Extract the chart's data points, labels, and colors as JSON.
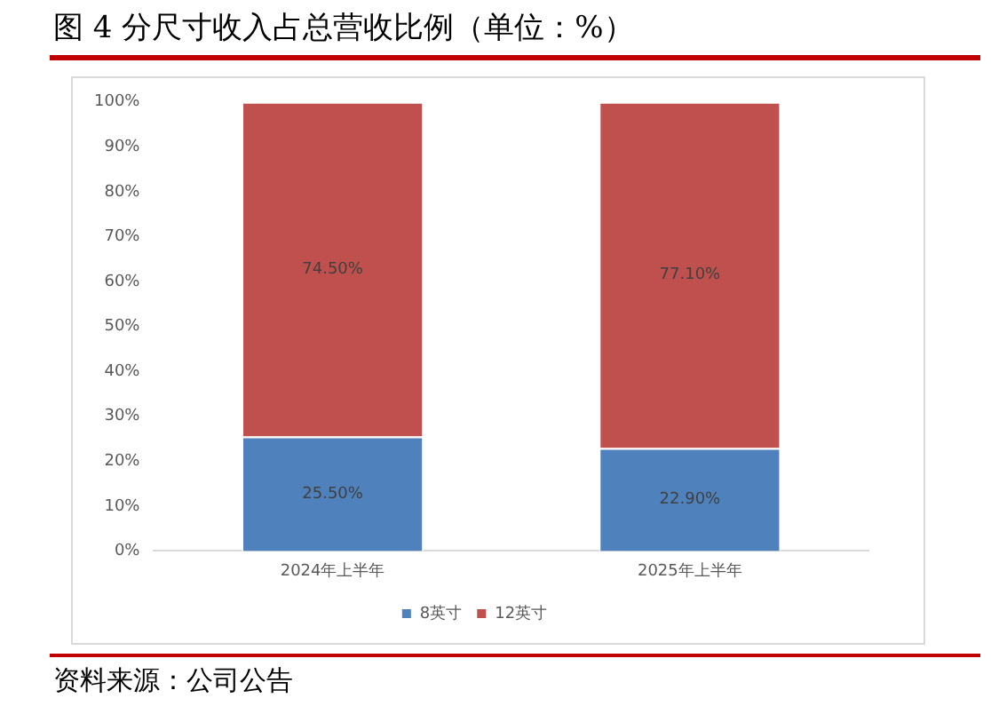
{
  "chart_data": {
    "type": "bar",
    "stacked": true,
    "title": "图 4 分尺寸收入占总营收比例（单位：%）",
    "categories": [
      "2024年上半年",
      "2025年上半年"
    ],
    "series": [
      {
        "name": "8英寸",
        "color": "#4f81bd",
        "values": [
          25.5,
          22.9
        ],
        "value_labels": [
          "25.50%",
          "22.90%"
        ]
      },
      {
        "name": "12英寸",
        "color": "#c0504d",
        "values": [
          74.5,
          77.1
        ],
        "value_labels": [
          "74.50%",
          "77.10%"
        ]
      }
    ],
    "ylim": [
      0,
      100
    ],
    "yticks": [
      {
        "value": 0,
        "label": "0%"
      },
      {
        "value": 10,
        "label": "10%"
      },
      {
        "value": 20,
        "label": "20%"
      },
      {
        "value": 30,
        "label": "30%"
      },
      {
        "value": 40,
        "label": "40%"
      },
      {
        "value": 50,
        "label": "50%"
      },
      {
        "value": 60,
        "label": "60%"
      },
      {
        "value": 70,
        "label": "70%"
      },
      {
        "value": 80,
        "label": "80%"
      },
      {
        "value": 90,
        "label": "90%"
      },
      {
        "value": 100,
        "label": "100%"
      }
    ],
    "grid": false,
    "legend": "bottom",
    "annotations": [
      "资料来源：公司公告"
    ]
  }
}
